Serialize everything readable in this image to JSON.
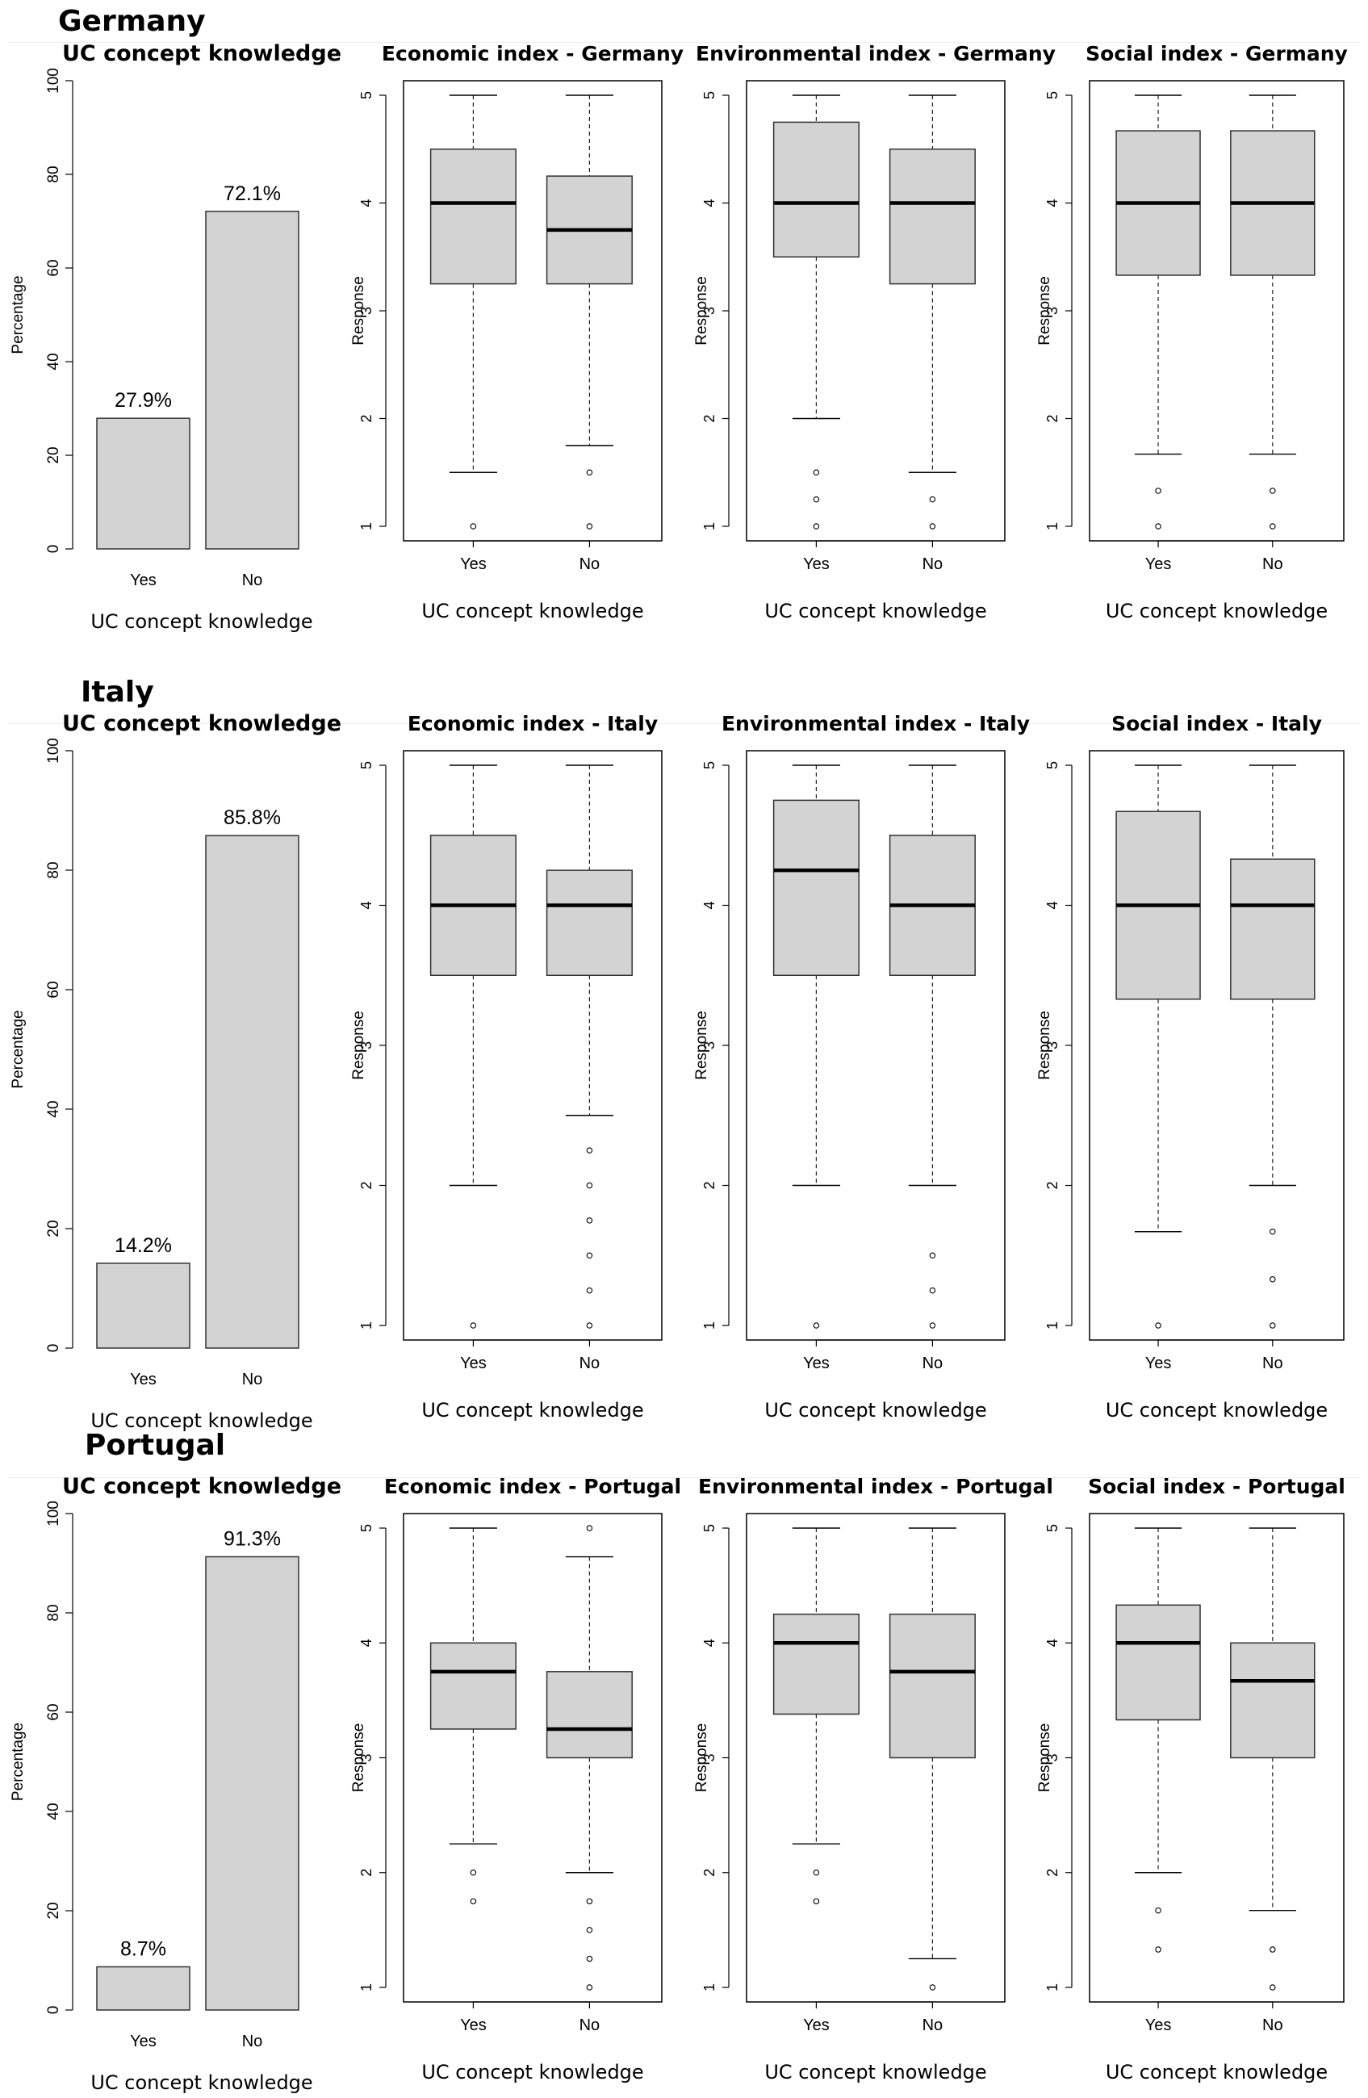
{
  "countries": [
    {
      "name": "Germany",
      "bar": {
        "title": "UC  concept knowledge",
        "ylabel": "Percentage",
        "xlabel": "UC  concept knowledge",
        "ticks": [
          "0",
          "20",
          "40",
          "60",
          "80",
          "100"
        ],
        "bars": [
          {
            "cat": "Yes",
            "value": 27.9,
            "label": "27.9%"
          },
          {
            "cat": "No",
            "value": 72.1,
            "label": "72.1%"
          }
        ]
      },
      "boxplots": [
        {
          "title": "Economic index - Germany",
          "ylabel": "Response",
          "xlabel": "UC  concept knowledge",
          "ticks": [
            "1",
            "2",
            "3",
            "4",
            "5"
          ],
          "boxes": [
            {
              "cat": "Yes",
              "wlo": 1.5,
              "q1": 3.25,
              "med": 4,
              "q3": 4.5,
              "whi": 5,
              "out": [
                1
              ]
            },
            {
              "cat": "No",
              "wlo": 1.75,
              "q1": 3.25,
              "med": 3.75,
              "q3": 4.25,
              "whi": 5,
              "out": [
                1.5,
                1
              ]
            }
          ]
        },
        {
          "title": "Environmental index - Germany",
          "ylabel": "Response",
          "xlabel": "UC  concept knowledge",
          "ticks": [
            "1",
            "2",
            "3",
            "4",
            "5"
          ],
          "boxes": [
            {
              "cat": "Yes",
              "wlo": 2,
              "q1": 3.5,
              "med": 4,
              "q3": 4.75,
              "whi": 5,
              "out": [
                1.5,
                1.25,
                1
              ]
            },
            {
              "cat": "No",
              "wlo": 1.5,
              "q1": 3.25,
              "med": 4,
              "q3": 4.5,
              "whi": 5,
              "out": [
                1.25,
                1
              ]
            }
          ]
        },
        {
          "title": "Social index - Germany",
          "ylabel": "Response",
          "xlabel": "UC  concept knowledge",
          "ticks": [
            "1",
            "2",
            "3",
            "4",
            "5"
          ],
          "boxes": [
            {
              "cat": "Yes",
              "wlo": 1.67,
              "q1": 3.33,
              "med": 4,
              "q3": 4.67,
              "whi": 5,
              "out": [
                1.33,
                1
              ]
            },
            {
              "cat": "No",
              "wlo": 1.67,
              "q1": 3.33,
              "med": 4,
              "q3": 4.67,
              "whi": 5,
              "out": [
                1.33,
                1
              ]
            }
          ]
        }
      ]
    },
    {
      "name": "Italy",
      "bar": {
        "title": "UC  concept knowledge",
        "ylabel": "Percentage",
        "xlabel": "UC  concept knowledge",
        "ticks": [
          "0",
          "20",
          "40",
          "60",
          "80",
          "100"
        ],
        "bars": [
          {
            "cat": "Yes",
            "value": 14.2,
            "label": "14.2%"
          },
          {
            "cat": "No",
            "value": 85.8,
            "label": "85.8%"
          }
        ]
      },
      "boxplots": [
        {
          "title": "Economic index - Italy",
          "ylabel": "Response",
          "xlabel": "UC  concept knowledge",
          "ticks": [
            "1",
            "2",
            "3",
            "4",
            "5"
          ],
          "boxes": [
            {
              "cat": "Yes",
              "wlo": 2,
              "q1": 3.5,
              "med": 4,
              "q3": 4.5,
              "whi": 5,
              "out": [
                1
              ]
            },
            {
              "cat": "No",
              "wlo": 2.5,
              "q1": 3.5,
              "med": 4,
              "q3": 4.25,
              "whi": 5,
              "out": [
                2.25,
                2,
                1.75,
                1.5,
                1.25,
                1
              ]
            }
          ]
        },
        {
          "title": "Environmental index - Italy",
          "ylabel": "Response",
          "xlabel": "UC  concept knowledge",
          "ticks": [
            "1",
            "2",
            "3",
            "4",
            "5"
          ],
          "boxes": [
            {
              "cat": "Yes",
              "wlo": 2,
              "q1": 3.5,
              "med": 4.25,
              "q3": 4.75,
              "whi": 5,
              "out": [
                1
              ]
            },
            {
              "cat": "No",
              "wlo": 2,
              "q1": 3.5,
              "med": 4,
              "q3": 4.5,
              "whi": 5,
              "out": [
                1.5,
                1.25,
                1
              ]
            }
          ]
        },
        {
          "title": "Social index - Italy",
          "ylabel": "Response",
          "xlabel": "UC  concept knowledge",
          "ticks": [
            "1",
            "2",
            "3",
            "4",
            "5"
          ],
          "boxes": [
            {
              "cat": "Yes",
              "wlo": 1.67,
              "q1": 3.33,
              "med": 4,
              "q3": 4.67,
              "whi": 5,
              "out": [
                1
              ]
            },
            {
              "cat": "No",
              "wlo": 2,
              "q1": 3.33,
              "med": 4,
              "q3": 4.33,
              "whi": 5,
              "out": [
                1.67,
                1.33,
                1
              ]
            }
          ]
        }
      ]
    },
    {
      "name": "Portugal",
      "bar": {
        "title": "UC  concept knowledge",
        "ylabel": "Percentage",
        "xlabel": "UC  concept knowledge",
        "ticks": [
          "0",
          "20",
          "40",
          "60",
          "80",
          "100"
        ],
        "bars": [
          {
            "cat": "Yes",
            "value": 8.7,
            "label": "8.7%"
          },
          {
            "cat": "No",
            "value": 91.3,
            "label": "91.3%"
          }
        ]
      },
      "boxplots": [
        {
          "title": "Economic index - Portugal",
          "ylabel": "Response",
          "xlabel": "UC  concept knowledge",
          "ticks": [
            "1",
            "2",
            "3",
            "4",
            "5"
          ],
          "boxes": [
            {
              "cat": "Yes",
              "wlo": 2.25,
              "q1": 3.25,
              "med": 3.75,
              "q3": 4,
              "whi": 5,
              "out": [
                2,
                1.75
              ]
            },
            {
              "cat": "No",
              "wlo": 2,
              "q1": 3,
              "med": 3.25,
              "q3": 3.75,
              "whi": 4.75,
              "out": [
                5,
                1.75,
                1.5,
                1.25,
                1
              ]
            }
          ]
        },
        {
          "title": "Environmental index - Portugal",
          "ylabel": "Response",
          "xlabel": "UC  concept knowledge",
          "ticks": [
            "1",
            "2",
            "3",
            "4",
            "5"
          ],
          "boxes": [
            {
              "cat": "Yes",
              "wlo": 2.25,
              "q1": 3.38,
              "med": 4,
              "q3": 4.25,
              "whi": 5,
              "out": [
                2,
                1.75
              ]
            },
            {
              "cat": "No",
              "wlo": 1.25,
              "q1": 3,
              "med": 3.75,
              "q3": 4.25,
              "whi": 5,
              "out": [
                1
              ]
            }
          ]
        },
        {
          "title": "Social index - Portugal",
          "ylabel": "Response",
          "xlabel": "UC  concept knowledge",
          "ticks": [
            "1",
            "2",
            "3",
            "4",
            "5"
          ],
          "boxes": [
            {
              "cat": "Yes",
              "wlo": 2,
              "q1": 3.33,
              "med": 4,
              "q3": 4.33,
              "whi": 5,
              "out": [
                1.67,
                1.33
              ]
            },
            {
              "cat": "No",
              "wlo": 1.67,
              "q1": 3,
              "med": 3.67,
              "q3": 4,
              "whi": 5,
              "out": [
                1.33,
                1
              ]
            }
          ]
        }
      ]
    }
  ],
  "chart_data": [
    {
      "type": "bar",
      "title": "UC  concept knowledge",
      "xlabel": "UC  concept knowledge",
      "ylabel": "Percentage",
      "ylim": [
        0,
        100
      ],
      "categories": [
        "Yes",
        "No"
      ],
      "values": [
        27.9,
        72.1
      ],
      "country": "Germany"
    },
    {
      "type": "boxplot",
      "title": "Economic index - Germany",
      "ylabel": "Response",
      "ylim": [
        1,
        5
      ],
      "categories": [
        "Yes",
        "No"
      ]
    },
    {
      "type": "boxplot",
      "title": "Environmental index - Germany",
      "ylabel": "Response",
      "ylim": [
        1,
        5
      ],
      "categories": [
        "Yes",
        "No"
      ]
    },
    {
      "type": "boxplot",
      "title": "Social index - Germany",
      "ylabel": "Response",
      "ylim": [
        1,
        5
      ],
      "categories": [
        "Yes",
        "No"
      ]
    },
    {
      "type": "bar",
      "title": "UC  concept knowledge",
      "xlabel": "UC  concept knowledge",
      "ylabel": "Percentage",
      "ylim": [
        0,
        100
      ],
      "categories": [
        "Yes",
        "No"
      ],
      "values": [
        14.2,
        85.8
      ],
      "country": "Italy"
    },
    {
      "type": "boxplot",
      "title": "Economic index - Italy",
      "ylabel": "Response",
      "ylim": [
        1,
        5
      ],
      "categories": [
        "Yes",
        "No"
      ]
    },
    {
      "type": "boxplot",
      "title": "Environmental index - Italy",
      "ylabel": "Response",
      "ylim": [
        1,
        5
      ],
      "categories": [
        "Yes",
        "No"
      ]
    },
    {
      "type": "boxplot",
      "title": "Social index - Italy",
      "ylabel": "Response",
      "ylim": [
        1,
        5
      ],
      "categories": [
        "Yes",
        "No"
      ]
    },
    {
      "type": "bar",
      "title": "UC  concept knowledge",
      "xlabel": "UC  concept knowledge",
      "ylabel": "Percentage",
      "ylim": [
        0,
        100
      ],
      "categories": [
        "Yes",
        "No"
      ],
      "values": [
        8.7,
        91.3
      ],
      "country": "Portugal"
    },
    {
      "type": "boxplot",
      "title": "Economic index - Portugal",
      "ylabel": "Response",
      "ylim": [
        1,
        5
      ],
      "categories": [
        "Yes",
        "No"
      ]
    },
    {
      "type": "boxplot",
      "title": "Environmental index - Portugal",
      "ylabel": "Response",
      "ylim": [
        1,
        5
      ],
      "categories": [
        "Yes",
        "No"
      ]
    },
    {
      "type": "boxplot",
      "title": "Social index - Portugal",
      "ylabel": "Response",
      "ylim": [
        1,
        5
      ],
      "categories": [
        "Yes",
        "No"
      ]
    }
  ]
}
